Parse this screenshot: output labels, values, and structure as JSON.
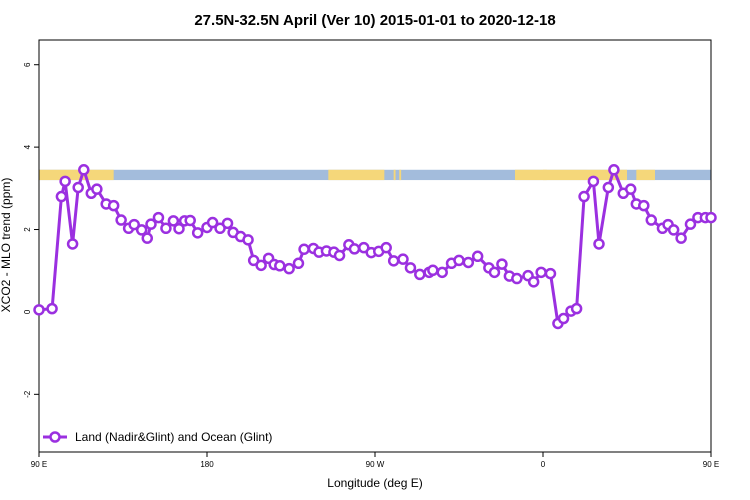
{
  "chart_data": {
    "type": "line",
    "title": "27.5N-32.5N April (Ver 10)   2015-01-01 to 2020-12-18",
    "xlabel": "Longitude (deg E)",
    "ylabel": "XCO2 - MLO trend (ppm)",
    "xlim": [
      90,
      450
    ],
    "ylim": [
      -3.4,
      6.6
    ],
    "x_ticks": [
      90,
      180,
      270,
      360,
      450
    ],
    "x_tick_labels": [
      "90 E",
      "180",
      "90 W",
      "0",
      "90 E"
    ],
    "y_ticks": [
      -2,
      0,
      2,
      4,
      6
    ],
    "y_tick_labels": [
      "-2",
      "0",
      "2",
      "4",
      "6"
    ],
    "grid": false,
    "legend_position": "bottom-left",
    "surface_band": {
      "y_range": [
        3.2,
        3.45
      ],
      "land_color": "#f5d77a",
      "ocean_color": "#a3bcdc",
      "land_segments": [
        [
          90,
          130
        ],
        [
          245,
          275
        ],
        [
          280,
          281
        ],
        [
          283,
          284
        ],
        [
          345,
          405
        ],
        [
          410,
          420
        ],
        [
          360,
          362
        ],
        [
          395,
          397
        ]
      ]
    },
    "series": [
      {
        "name": "Land (Nadir&Glint) and Ocean (Glint)",
        "color": "#9b30e0",
        "x": [
          90,
          97,
          102,
          104,
          108,
          111,
          114,
          118,
          121,
          126,
          130,
          134,
          138,
          141,
          145,
          148,
          150,
          154,
          158,
          162,
          165,
          168,
          171,
          175,
          180,
          183,
          187,
          191,
          194,
          198,
          202,
          205,
          209,
          213,
          216,
          219,
          224,
          229,
          232,
          237,
          240,
          244,
          248,
          251,
          256,
          259,
          264,
          268,
          272,
          276,
          280,
          285,
          289,
          294,
          299,
          301,
          306,
          311,
          315,
          320,
          325,
          331,
          334,
          338,
          342,
          346,
          352,
          355,
          359,
          364,
          368,
          371,
          375,
          378,
          382,
          387,
          390,
          395,
          398,
          403,
          407,
          410,
          414,
          418,
          424,
          427,
          430,
          434,
          439,
          443,
          447,
          450
        ],
        "y": [
          0.05,
          0.08,
          2.8,
          3.17,
          1.65,
          3.02,
          3.45,
          2.88,
          2.98,
          2.62,
          2.58,
          2.23,
          2.03,
          2.12,
          1.99,
          1.79,
          2.13,
          2.29,
          2.03,
          2.21,
          2.02,
          2.21,
          2.22,
          1.92,
          2.05,
          2.17,
          2.03,
          2.15,
          1.93,
          1.83,
          1.75,
          1.25,
          1.13,
          1.3,
          1.15,
          1.12,
          1.05,
          1.18,
          1.52,
          1.54,
          1.45,
          1.48,
          1.45,
          1.37,
          1.63,
          1.53,
          1.56,
          1.44,
          1.47,
          1.56,
          1.24,
          1.28,
          1.07,
          0.91,
          0.96,
          1.01,
          0.96,
          1.18,
          1.25,
          1.2,
          1.35,
          1.07,
          0.96,
          1.16,
          0.87,
          0.81,
          0.88,
          0.73,
          0.96,
          0.93,
          -0.28,
          -0.16,
          0.02,
          0.08,
          2.8,
          3.17,
          1.65,
          3.02,
          3.45,
          2.88,
          2.98,
          2.62,
          2.58,
          2.23,
          2.03,
          2.12,
          1.99,
          1.79,
          2.13,
          2.29,
          2.29,
          2.29
        ]
      }
    ]
  }
}
